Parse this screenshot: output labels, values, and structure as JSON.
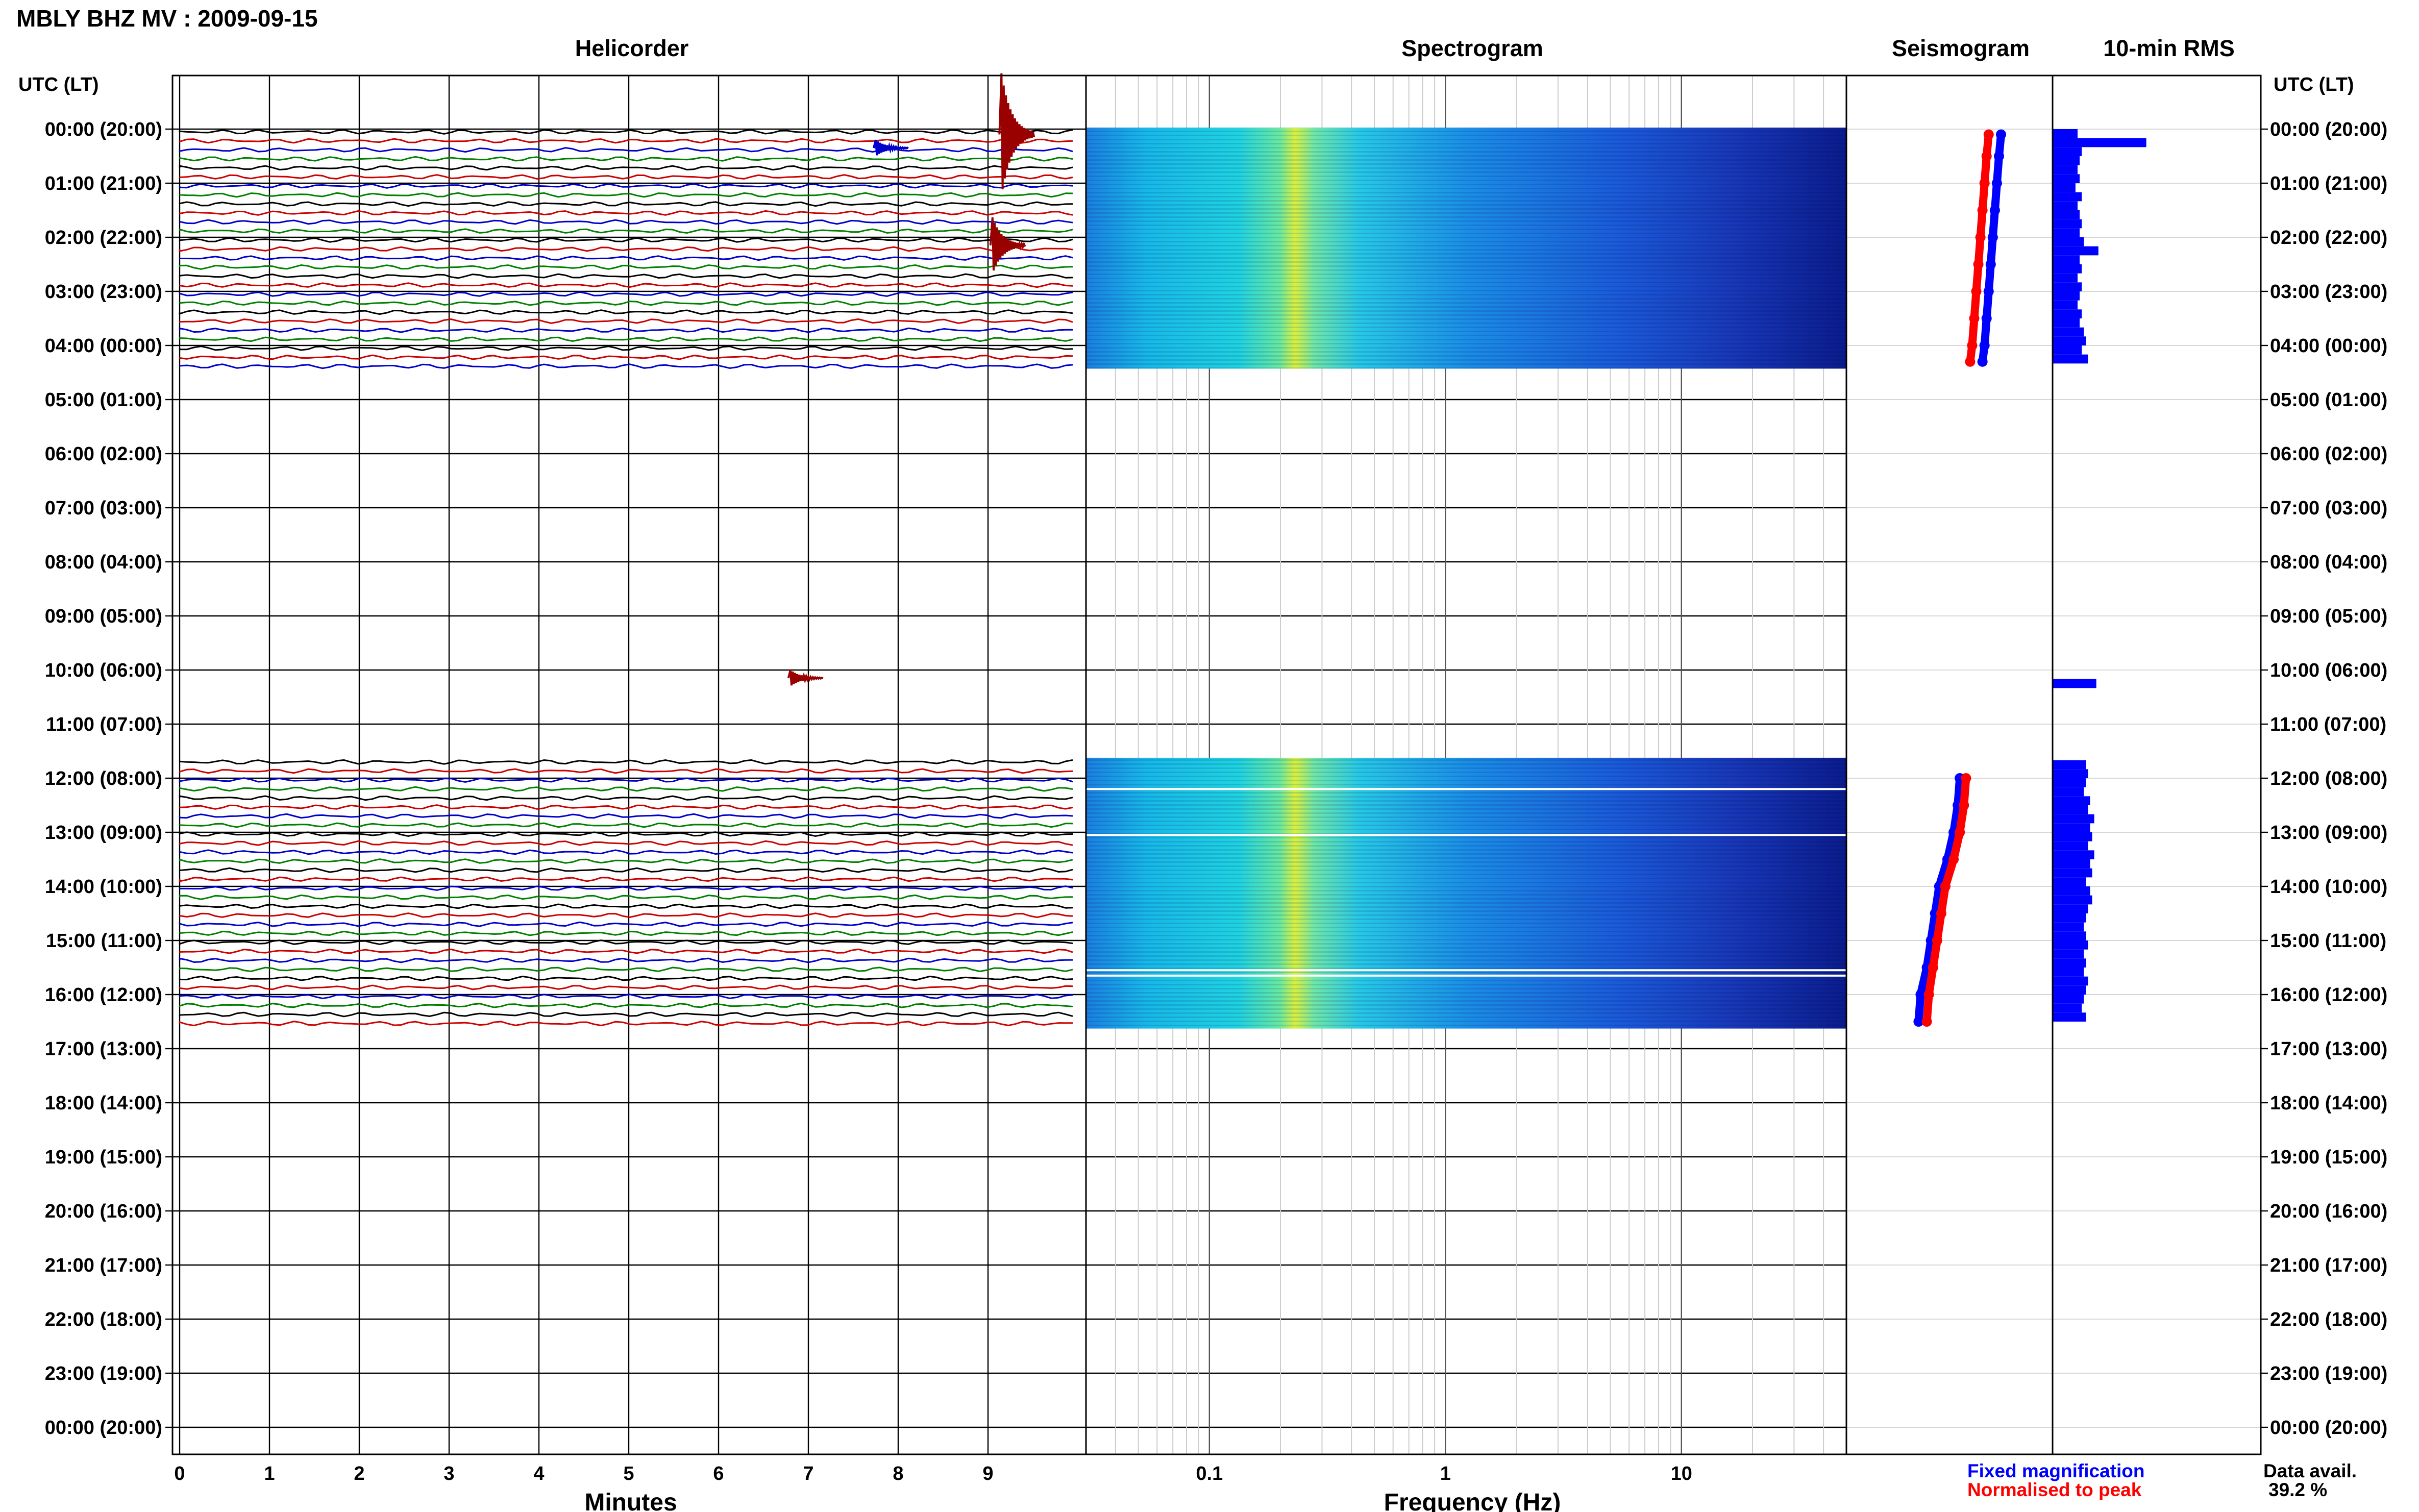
{
  "header": {
    "station_title": "MBLY BHZ MV : 2009-09-15"
  },
  "panels": {
    "helicorder": "Helicorder",
    "spectrogram": "Spectrogram",
    "seismogram": "Seismogram",
    "rms": "10-min RMS"
  },
  "time_axis": {
    "label_left": "UTC (LT)",
    "label_right": "UTC (LT)",
    "ticks": [
      "00:00 (20:00)",
      "01:00 (21:00)",
      "02:00 (22:00)",
      "03:00 (23:00)",
      "04:00 (00:00)",
      "05:00 (01:00)",
      "06:00 (02:00)",
      "07:00 (03:00)",
      "08:00 (04:00)",
      "09:00 (05:00)",
      "10:00 (06:00)",
      "11:00 (07:00)",
      "12:00 (08:00)",
      "13:00 (09:00)",
      "14:00 (10:00)",
      "15:00 (11:00)",
      "16:00 (12:00)",
      "17:00 (13:00)",
      "18:00 (14:00)",
      "19:00 (15:00)",
      "20:00 (16:00)",
      "21:00 (17:00)",
      "22:00 (18:00)",
      "23:00 (19:00)",
      "00:00 (20:00)"
    ]
  },
  "legend": {
    "fixed": "Fixed magnification",
    "fixed_color": "#0000ff",
    "normalised": "Normalised to peak",
    "normalised_color": "#ff0000"
  },
  "availability": {
    "label": "Data avail.",
    "value": "39.2 %"
  },
  "chart_data": [
    {
      "type": "line",
      "panel": "helicorder",
      "xlabel": "Minutes",
      "xticks": [
        "0",
        "1",
        "2",
        "3",
        "4",
        "5",
        "6",
        "7",
        "8",
        "9"
      ],
      "xlim": [
        0,
        10
      ],
      "trace_colors": [
        "#000000",
        "#cc0000",
        "#0000cc",
        "#008000"
      ],
      "segments_hours": [
        [
          0.0,
          4.4
        ],
        [
          11.65,
          16.6
        ]
      ],
      "events": [
        {
          "hour": 0.1,
          "minute": 9.15,
          "amplitude": "large",
          "color": "#990000"
        },
        {
          "hour": 2.15,
          "minute": 9.05,
          "amplitude": "medium",
          "color": "#990000"
        },
        {
          "hour": 0.35,
          "minute": 7.75,
          "amplitude": "small",
          "color": "#0000cc"
        },
        {
          "hour": 10.15,
          "minute": 6.8,
          "amplitude": "small",
          "color": "#990000"
        }
      ]
    },
    {
      "type": "heatmap",
      "panel": "spectrogram",
      "xlabel": "Frequency (Hz)",
      "xscale": "log",
      "xlim": [
        0.03,
        50
      ],
      "xticks": [
        "0.1",
        "1",
        "10"
      ],
      "colormap": "jet",
      "segments_hours": [
        [
          0.0,
          4.4
        ],
        [
          11.65,
          16.6
        ]
      ],
      "peak_frequency_hz": 0.2
    },
    {
      "type": "scatter",
      "panel": "seismogram",
      "series": [
        {
          "name": "Fixed magnification",
          "color": "#0000ff",
          "hours": [
            0.1,
            0.5,
            1,
            1.5,
            2,
            2.5,
            3,
            3.5,
            4,
            4.3,
            12,
            12.5,
            13,
            13.5,
            14,
            14.5,
            15,
            15.5,
            16,
            16.5
          ],
          "values": [
            0.75,
            0.74,
            0.73,
            0.72,
            0.71,
            0.7,
            0.69,
            0.68,
            0.67,
            0.66,
            0.55,
            0.54,
            0.52,
            0.49,
            0.45,
            0.43,
            0.41,
            0.39,
            0.36,
            0.35
          ]
        },
        {
          "name": "Normalised to peak",
          "color": "#ff0000",
          "hours": [
            0.1,
            0.5,
            1,
            1.5,
            2,
            2.5,
            3,
            3.5,
            4,
            4.3,
            12,
            12.5,
            13,
            13.5,
            14,
            14.5,
            15,
            15.5,
            16,
            16.5
          ],
          "values": [
            0.69,
            0.68,
            0.67,
            0.66,
            0.65,
            0.64,
            0.63,
            0.62,
            0.61,
            0.6,
            0.58,
            0.57,
            0.55,
            0.52,
            0.48,
            0.46,
            0.44,
            0.42,
            0.4,
            0.39
          ]
        }
      ]
    },
    {
      "type": "bar",
      "panel": "rms",
      "orientation": "horizontal",
      "color": "#0000ff",
      "bins_start_hour": [
        0.0,
        0.1667,
        0.3333,
        0.5,
        0.6667,
        0.8333,
        1.0,
        1.1667,
        1.3333,
        1.5,
        1.6667,
        1.8333,
        2.0,
        2.1667,
        2.3333,
        2.5,
        2.6667,
        2.8333,
        3.0,
        3.1667,
        3.3333,
        3.5,
        3.6667,
        3.8333,
        4.0,
        4.1667,
        10.1667,
        11.6667,
        11.8333,
        12.0,
        12.1667,
        12.3333,
        12.5,
        12.6667,
        12.8333,
        13.0,
        13.1667,
        13.3333,
        13.5,
        13.6667,
        13.8333,
        14.0,
        14.1667,
        14.3333,
        14.5,
        14.6667,
        14.8333,
        15.0,
        15.1667,
        15.3333,
        15.5,
        15.6667,
        15.8333,
        16.0,
        16.1667,
        16.3333
      ],
      "values": [
        0.12,
        0.45,
        0.14,
        0.13,
        0.12,
        0.13,
        0.11,
        0.14,
        0.12,
        0.13,
        0.14,
        0.13,
        0.15,
        0.22,
        0.13,
        0.14,
        0.12,
        0.14,
        0.13,
        0.12,
        0.14,
        0.13,
        0.15,
        0.16,
        0.14,
        0.17,
        0.21,
        0.16,
        0.17,
        0.16,
        0.15,
        0.18,
        0.17,
        0.2,
        0.18,
        0.19,
        0.17,
        0.2,
        0.18,
        0.19,
        0.16,
        0.18,
        0.19,
        0.17,
        0.16,
        0.15,
        0.16,
        0.17,
        0.15,
        0.16,
        0.15,
        0.17,
        0.16,
        0.15,
        0.14,
        0.16
      ],
      "xlim": [
        0,
        1
      ]
    }
  ]
}
